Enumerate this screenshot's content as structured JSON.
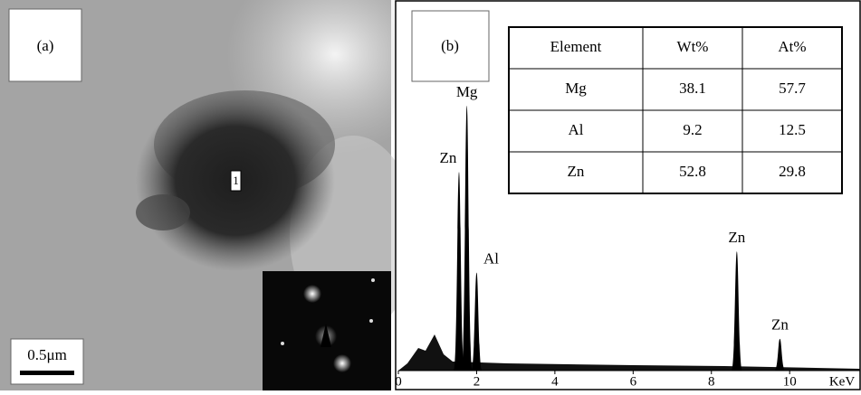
{
  "panel_a": {
    "label": "(a)",
    "scale_bar": "0.5μm",
    "point_label": "1"
  },
  "panel_b": {
    "label": "(b)",
    "x_unit": "KeV",
    "xlim": [
      0,
      11.8
    ],
    "xticks": [
      0,
      2,
      4,
      6,
      8,
      10
    ],
    "ylim": [
      0,
      100
    ],
    "peaks": [
      {
        "label": "Zn",
        "energy": 1.55,
        "height": 75
      },
      {
        "label": "Mg",
        "energy": 1.75,
        "height": 100
      },
      {
        "label": "Al",
        "energy": 2.0,
        "height": 37
      },
      {
        "label": "Zn",
        "energy": 8.65,
        "height": 45
      },
      {
        "label": "Zn",
        "energy": 9.75,
        "height": 12
      }
    ],
    "table": {
      "header": [
        "Element",
        "Wt%",
        "At%"
      ],
      "rows": [
        [
          "Mg",
          "38.1",
          "57.7"
        ],
        [
          "Al",
          "9.2",
          "12.5"
        ],
        [
          "Zn",
          "52.8",
          "29.8"
        ]
      ]
    }
  }
}
